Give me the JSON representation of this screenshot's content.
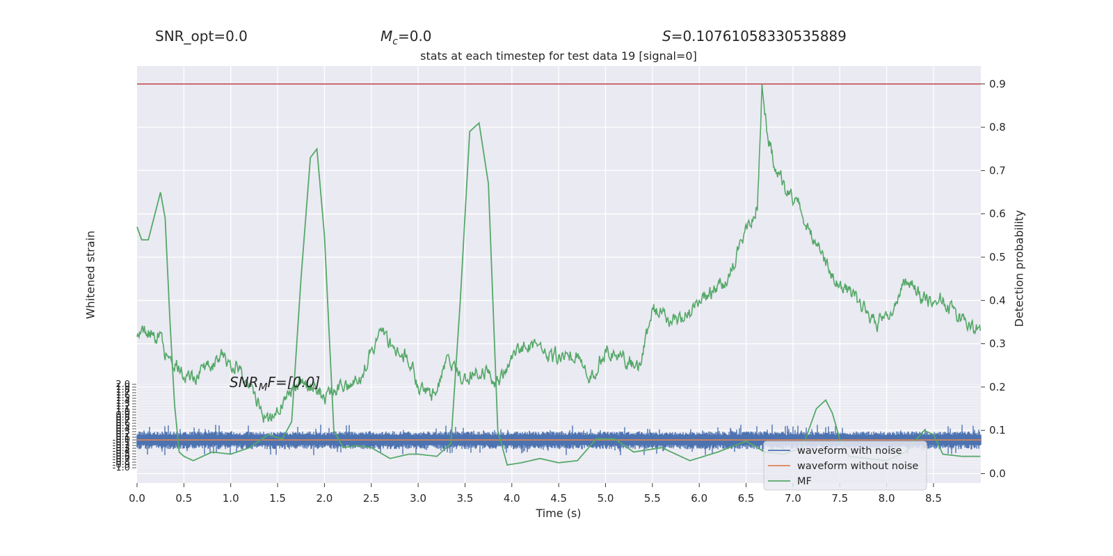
{
  "header": {
    "snr_opt": "SNR_opt=0.0",
    "mc": "M_c=0.0",
    "mc_symbol": "M",
    "mc_sub": "c",
    "mc_value": "=0.0",
    "s": "S=0.10761058330535889",
    "s_symbol": "S",
    "s_value": "=0.10761058330535889",
    "title": "stats at each timestep for test data 19 [signal=0]"
  },
  "annotation": {
    "snr_mf": "SNR_MF=[0.0]",
    "snr_mf_main": "SNR",
    "snr_mf_sub": "M",
    "snr_mf_rest": "F=[0.0]"
  },
  "chart_data": {
    "type": "line",
    "xlabel": "Time (s)",
    "ylabel_left": "Whitened strain",
    "ylabel_right": "Detection probability",
    "xlim": [
      0.0,
      9.0
    ],
    "x_ticks": [
      "0.0",
      "0.5",
      "1.0",
      "1.5",
      "2.0",
      "2.5",
      "3.0",
      "3.5",
      "4.0",
      "4.5",
      "5.0",
      "5.5",
      "6.0",
      "6.5",
      "7.0",
      "7.5",
      "8.0",
      "8.5"
    ],
    "right_ylim": [
      -0.02,
      0.94
    ],
    "right_ticks": [
      "0.0",
      "0.1",
      "0.2",
      "0.3",
      "0.4",
      "0.5",
      "0.6",
      "0.7",
      "0.8",
      "0.9"
    ],
    "left_ylim": [
      -1.0,
      2.0
    ],
    "left_ticks_visible": [
      "2.0",
      "1.0"
    ],
    "threshold": 0.9,
    "grid": true,
    "legend_position": "lower-right",
    "colors": {
      "background": "#eaeaf2",
      "noise": "#4c72b0",
      "clean": "#dd8452",
      "mf": "#55a868",
      "threshold": "#c44e52",
      "prob": "#55a868"
    },
    "series": [
      {
        "name": "waveform with noise",
        "color": "#4c72b0",
        "band": [
          -0.3,
          0.3
        ],
        "spike_max": 0.55
      },
      {
        "name": "waveform without noise",
        "color": "#dd8452",
        "value": 0.0
      },
      {
        "name": "MF",
        "color": "#55a868",
        "x": [
          0.0,
          0.05,
          0.12,
          0.18,
          0.25,
          0.3,
          0.35,
          0.4,
          0.45,
          0.5,
          0.6,
          0.8,
          1.0,
          1.2,
          1.4,
          1.55,
          1.65,
          1.75,
          1.85,
          1.92,
          2.0,
          2.1,
          2.2,
          2.35,
          2.5,
          2.7,
          2.9,
          3.0,
          3.2,
          3.35,
          3.45,
          3.55,
          3.65,
          3.75,
          3.85,
          3.95,
          4.1,
          4.3,
          4.5,
          4.7,
          4.9,
          5.1,
          5.3,
          5.6,
          5.9,
          6.2,
          6.5,
          6.7,
          6.9,
          7.1,
          7.25,
          7.35,
          7.42,
          7.5,
          7.6,
          7.8,
          8.0,
          8.2,
          8.4,
          8.5,
          8.6,
          8.8,
          9.0
        ],
        "y": [
          0.57,
          0.54,
          0.54,
          0.59,
          0.65,
          0.59,
          0.36,
          0.16,
          0.05,
          0.04,
          0.03,
          0.05,
          0.045,
          0.06,
          0.09,
          0.08,
          0.12,
          0.45,
          0.73,
          0.75,
          0.55,
          0.1,
          0.06,
          0.065,
          0.06,
          0.035,
          0.045,
          0.045,
          0.04,
          0.07,
          0.4,
          0.79,
          0.81,
          0.67,
          0.1,
          0.02,
          0.025,
          0.035,
          0.025,
          0.03,
          0.08,
          0.08,
          0.05,
          0.06,
          0.03,
          0.05,
          0.075,
          0.05,
          0.045,
          0.06,
          0.15,
          0.17,
          0.14,
          0.08,
          0.04,
          0.035,
          0.03,
          0.05,
          0.1,
          0.09,
          0.045,
          0.04,
          0.04
        ]
      },
      {
        "name": "Detection probability",
        "color": "#55a868",
        "x": [
          0.0,
          0.25,
          0.3,
          0.4,
          0.5,
          0.6,
          0.75,
          0.9,
          1.0,
          1.1,
          1.25,
          1.4,
          1.55,
          1.7,
          1.85,
          2.0,
          2.1,
          2.25,
          2.4,
          2.6,
          2.75,
          2.9,
          3.0,
          3.15,
          3.3,
          3.5,
          3.7,
          3.85,
          4.05,
          4.25,
          4.45,
          4.65,
          4.85,
          5.0,
          5.2,
          5.35,
          5.5,
          5.7,
          5.9,
          6.1,
          6.3,
          6.5,
          6.62,
          6.67,
          6.72,
          6.8,
          6.95,
          7.05,
          7.2,
          7.35,
          7.55,
          7.75,
          7.9,
          8.05,
          8.2,
          8.4,
          8.6,
          8.8,
          9.0
        ],
        "y": [
          0.33,
          0.32,
          0.28,
          0.26,
          0.23,
          0.22,
          0.25,
          0.27,
          0.26,
          0.24,
          0.18,
          0.12,
          0.16,
          0.21,
          0.2,
          0.18,
          0.19,
          0.21,
          0.23,
          0.33,
          0.29,
          0.27,
          0.2,
          0.18,
          0.25,
          0.22,
          0.24,
          0.21,
          0.29,
          0.3,
          0.27,
          0.28,
          0.22,
          0.29,
          0.27,
          0.24,
          0.38,
          0.35,
          0.37,
          0.41,
          0.45,
          0.57,
          0.62,
          0.89,
          0.8,
          0.72,
          0.64,
          0.63,
          0.55,
          0.48,
          0.43,
          0.38,
          0.35,
          0.38,
          0.45,
          0.4,
          0.4,
          0.36,
          0.33
        ]
      }
    ]
  }
}
